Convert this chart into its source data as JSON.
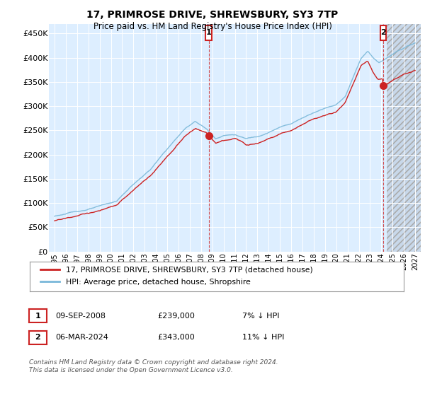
{
  "title": "17, PRIMROSE DRIVE, SHREWSBURY, SY3 7TP",
  "subtitle": "Price paid vs. HM Land Registry's House Price Index (HPI)",
  "ylabel_ticks": [
    "£0",
    "£50K",
    "£100K",
    "£150K",
    "£200K",
    "£250K",
    "£300K",
    "£350K",
    "£400K",
    "£450K"
  ],
  "ytick_values": [
    0,
    50000,
    100000,
    150000,
    200000,
    250000,
    300000,
    350000,
    400000,
    450000
  ],
  "ylim": [
    0,
    470000
  ],
  "hpi_color": "#7ab8d9",
  "price_color": "#cc2222",
  "sale1_x": 2008.69,
  "sale1_y": 239000,
  "sale2_x": 2024.17,
  "sale2_y": 343000,
  "legend_label1": "17, PRIMROSE DRIVE, SHREWSBURY, SY3 7TP (detached house)",
  "legend_label2": "HPI: Average price, detached house, Shropshire",
  "table_row1": [
    "1",
    "09-SEP-2008",
    "£239,000",
    "7% ↓ HPI"
  ],
  "table_row2": [
    "2",
    "06-MAR-2024",
    "£343,000",
    "11% ↓ HPI"
  ],
  "footnote": "Contains HM Land Registry data © Crown copyright and database right 2024.\nThis data is licensed under the Open Government Licence v3.0.",
  "bg_color": "#ffffff",
  "plot_bg": "#ddeeff",
  "grid_color": "#ffffff",
  "hatch_color": "#c8d8e8",
  "xlim_left": 1994.5,
  "xlim_right": 2027.5,
  "hatch_start": 2024.5
}
